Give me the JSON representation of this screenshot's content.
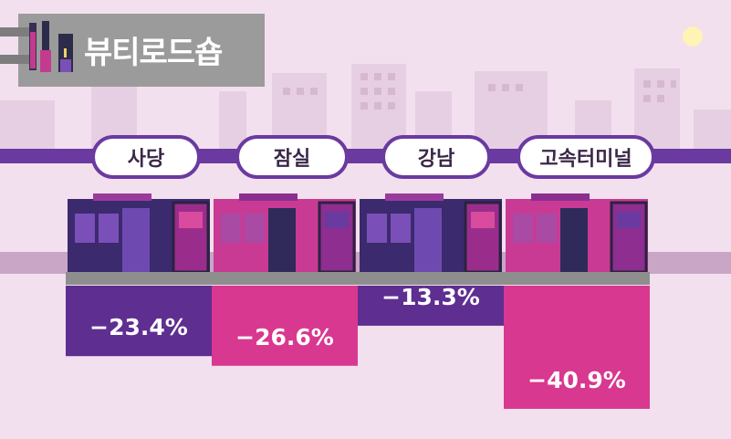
{
  "title": "뷰티로드숍",
  "colors": {
    "background": "#f2e0ee",
    "purple": "#5e2e91",
    "magenta": "#d8388f",
    "line": "#6a3aa0",
    "label_text": "#ffffff"
  },
  "chart_data": {
    "type": "bar",
    "title": "뷰티로드숍",
    "categories": [
      "사당",
      "잠실",
      "강남",
      "고속터미널"
    ],
    "values": [
      -23.4,
      -26.6,
      -13.3,
      -40.9
    ],
    "value_labels": [
      "−23.4%",
      "−26.6%",
      "−13.3%",
      "−40.9%"
    ],
    "bar_colors": [
      "#5e2e91",
      "#d8388f",
      "#5e2e91",
      "#d8388f"
    ],
    "ylim": [
      -45,
      0
    ],
    "unit": "%",
    "grid": false,
    "legend": "none"
  }
}
